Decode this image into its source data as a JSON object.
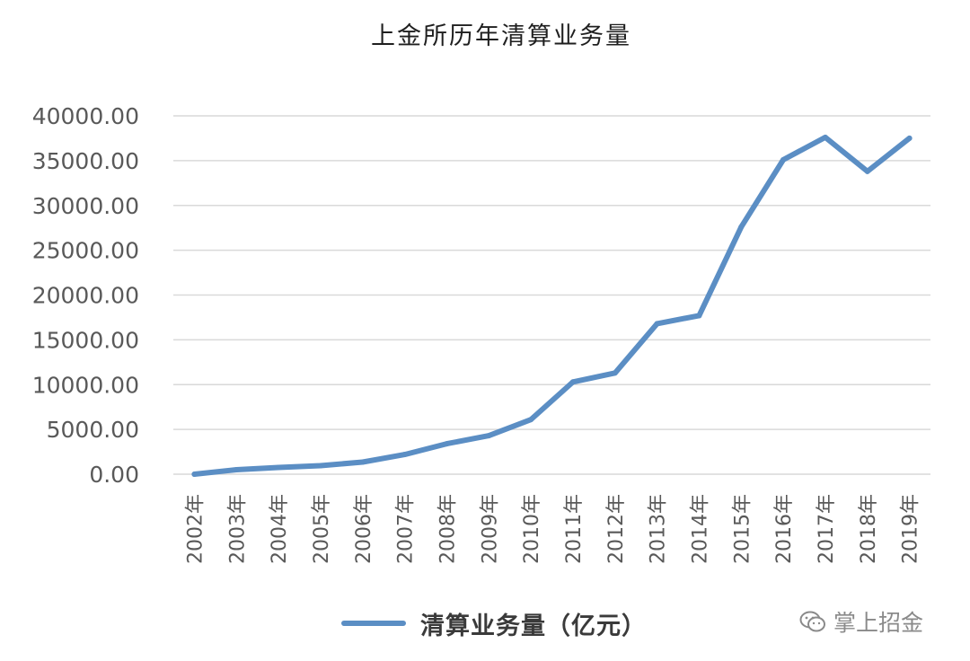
{
  "chart_data": {
    "type": "line",
    "title": "上金所历年清算业务量",
    "categories": [
      "2002年",
      "2003年",
      "2004年",
      "2005年",
      "2006年",
      "2007年",
      "2008年",
      "2009年",
      "2010年",
      "2011年",
      "2012年",
      "2013年",
      "2014年",
      "2015年",
      "2016年",
      "2017年",
      "2018年",
      "2019年"
    ],
    "series": [
      {
        "name": "清算业务量（亿元）",
        "color": "#5b8ec4",
        "values": [
          0,
          500,
          750,
          950,
          1350,
          2200,
          3400,
          4300,
          6100,
          10300,
          11300,
          16800,
          17700,
          27600,
          35100,
          37600,
          33800,
          37500
        ]
      }
    ],
    "yticks": [
      "0.00",
      "5000.00",
      "10000.00",
      "15000.00",
      "20000.00",
      "25000.00",
      "30000.00",
      "35000.00",
      "40000.00"
    ],
    "ylim": [
      0,
      40000
    ],
    "grid": true,
    "legend_position": "bottom"
  },
  "watermark": {
    "text": "掌上招金",
    "icon": "wechat-icon"
  }
}
